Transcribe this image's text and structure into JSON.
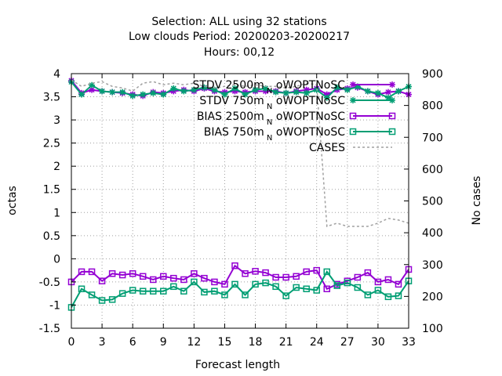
{
  "chart_data": {
    "type": "line",
    "title_lines": [
      "Selection: ALL using    32 stations",
      "Low clouds   Period: 20200203-20200217",
      "Hours:  00,12"
    ],
    "xlabel": "Forecast length",
    "ylabel": "octas",
    "y2label": "No cases",
    "xlim": [
      0,
      33
    ],
    "ylim": [
      -1.5,
      4
    ],
    "y2lim": [
      100,
      900
    ],
    "xticks": [
      0,
      3,
      6,
      9,
      12,
      15,
      18,
      21,
      24,
      27,
      30,
      33
    ],
    "yticks": [
      -1.5,
      -1,
      -0.5,
      0,
      0.5,
      1,
      1.5,
      2,
      2.5,
      3,
      3.5,
      4
    ],
    "y2ticks": [
      100,
      200,
      300,
      400,
      500,
      600,
      700,
      800,
      900
    ],
    "grid": true,
    "legend_position": "top-right",
    "x": [
      0,
      1,
      2,
      3,
      4,
      5,
      6,
      7,
      8,
      9,
      10,
      11,
      12,
      13,
      14,
      15,
      16,
      17,
      18,
      19,
      20,
      21,
      22,
      23,
      24,
      25,
      26,
      27,
      28,
      29,
      30,
      31,
      32,
      33
    ],
    "series": [
      {
        "name": "STDV 2500m",
        "subscript": "N",
        "name_suffix": "oWOPTNoSC",
        "color": "#9400d3",
        "marker": "star",
        "axis": "y",
        "values": [
          3.85,
          3.58,
          3.65,
          3.62,
          3.6,
          3.58,
          3.55,
          3.52,
          3.6,
          3.58,
          3.62,
          3.65,
          3.62,
          3.68,
          3.62,
          3.6,
          3.62,
          3.6,
          3.62,
          3.62,
          3.62,
          3.58,
          3.62,
          3.65,
          3.68,
          3.55,
          3.65,
          3.68,
          3.7,
          3.62,
          3.55,
          3.6,
          3.62,
          3.55
        ]
      },
      {
        "name": "STDV 750m",
        "subscript": "N",
        "name_suffix": "oWOPTNoSC",
        "color": "#009e73",
        "marker": "star",
        "axis": "y",
        "values": [
          3.82,
          3.55,
          3.75,
          3.62,
          3.6,
          3.6,
          3.52,
          3.55,
          3.58,
          3.55,
          3.68,
          3.62,
          3.65,
          3.7,
          3.65,
          3.55,
          3.68,
          3.55,
          3.65,
          3.68,
          3.6,
          3.58,
          3.6,
          3.58,
          3.65,
          3.48,
          3.7,
          3.65,
          3.72,
          3.62,
          3.58,
          3.48,
          3.62,
          3.72
        ]
      },
      {
        "name": "BIAS 2500m",
        "subscript": "N",
        "name_suffix": "oWOPTNoSC",
        "color": "#9400d3",
        "marker": "square",
        "axis": "y",
        "values": [
          -0.5,
          -0.28,
          -0.28,
          -0.48,
          -0.32,
          -0.35,
          -0.32,
          -0.38,
          -0.45,
          -0.38,
          -0.42,
          -0.45,
          -0.32,
          -0.42,
          -0.5,
          -0.55,
          -0.15,
          -0.32,
          -0.27,
          -0.3,
          -0.4,
          -0.4,
          -0.38,
          -0.28,
          -0.25,
          -0.65,
          -0.55,
          -0.48,
          -0.4,
          -0.3,
          -0.5,
          -0.45,
          -0.55,
          -0.23
        ]
      },
      {
        "name": "BIAS 750m",
        "subscript": "N",
        "name_suffix": "oWOPTNoSC",
        "color": "#009e73",
        "marker": "square",
        "axis": "y",
        "values": [
          -1.05,
          -0.65,
          -0.78,
          -0.9,
          -0.88,
          -0.75,
          -0.68,
          -0.7,
          -0.7,
          -0.7,
          -0.6,
          -0.7,
          -0.5,
          -0.72,
          -0.7,
          -0.78,
          -0.55,
          -0.78,
          -0.55,
          -0.52,
          -0.6,
          -0.8,
          -0.62,
          -0.65,
          -0.68,
          -0.28,
          -0.58,
          -0.52,
          -0.62,
          -0.78,
          -0.68,
          -0.82,
          -0.8,
          -0.48
        ]
      },
      {
        "name": "CASES",
        "color": "#a0a0a0",
        "marker": "none",
        "dashed": true,
        "axis": "y2",
        "values": [
          880,
          860,
          870,
          875,
          860,
          855,
          845,
          870,
          875,
          865,
          870,
          865,
          870,
          860,
          855,
          860,
          865,
          860,
          865,
          860,
          860,
          855,
          860,
          870,
          865,
          420,
          430,
          420,
          420,
          420,
          430,
          445,
          440,
          430
        ]
      }
    ]
  }
}
